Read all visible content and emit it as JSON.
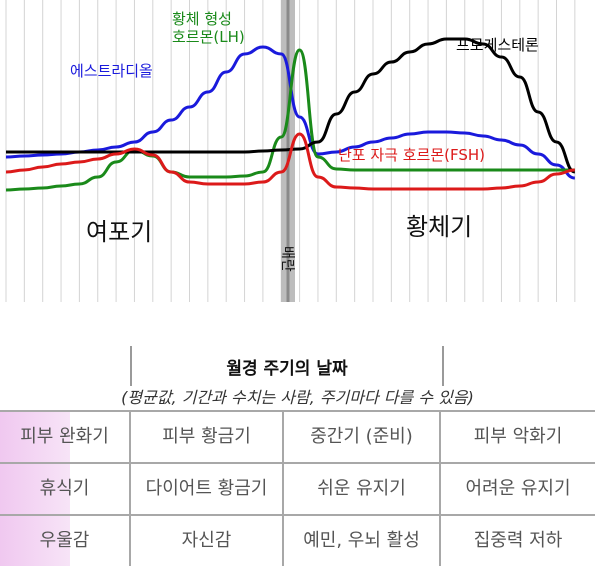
{
  "chart_data": {
    "type": "line",
    "x": [
      1,
      2,
      3,
      4,
      5,
      6,
      7,
      8,
      9,
      10,
      11,
      12,
      13,
      14,
      15,
      16,
      17,
      18,
      19,
      20,
      21,
      22,
      23,
      24,
      25,
      26,
      27,
      28,
      29,
      30,
      31,
      32
    ],
    "series": [
      {
        "name": "에스트라디올",
        "color": "#1a1adc",
        "values": [
          145,
          146,
          147,
          148,
          150,
          152,
          155,
          160,
          170,
          182,
          195,
          210,
          230,
          248,
          255,
          248,
          185,
          148,
          150,
          155,
          160,
          164,
          168,
          170,
          170,
          169,
          166,
          162,
          157,
          148,
          137,
          124
        ]
      },
      {
        "name": "황체 형성 호르몬(LH)",
        "color": "#1a8a1a",
        "values": [
          112,
          113,
          114,
          116,
          118,
          125,
          140,
          152,
          146,
          130,
          125,
          125,
          125,
          126,
          130,
          165,
          252,
          145,
          133,
          132,
          132,
          132,
          132,
          132,
          132,
          132,
          132,
          132,
          132,
          132,
          132,
          132
        ]
      },
      {
        "name": "프로게스테론",
        "color": "#000000",
        "values": [
          150,
          150,
          150,
          150,
          150,
          150,
          150,
          150,
          150,
          150,
          150,
          150,
          150,
          150,
          151,
          152,
          153,
          160,
          188,
          210,
          228,
          240,
          250,
          258,
          263,
          263,
          258,
          245,
          225,
          190,
          160,
          130
        ]
      },
      {
        "name": "난포 자극 호르몬(FSH)",
        "color": "#dc1a1a",
        "values": [
          130,
          132,
          135,
          138,
          140,
          143,
          148,
          153,
          147,
          130,
          120,
          118,
          118,
          118,
          120,
          130,
          168,
          125,
          115,
          114,
          113,
          113,
          113,
          113,
          113,
          113,
          113,
          114,
          116,
          120,
          128,
          132
        ]
      }
    ],
    "phase_labels": {
      "follicular": "여포기",
      "ovulation": "배란",
      "luteal": "황체기"
    },
    "ovulation_day": 17.5,
    "tick_colors": {
      "red": [
        1,
        2,
        3,
        4,
        5
      ],
      "blue": [
        15,
        16,
        17,
        18,
        19,
        20,
        21
      ],
      "black": [
        6,
        7,
        8,
        9,
        10,
        11,
        12,
        13,
        14,
        22,
        23,
        24,
        25,
        26,
        27,
        28,
        29,
        30,
        31,
        32
      ]
    },
    "xlim": [
      1,
      32
    ],
    "grid": true
  },
  "table": {
    "title": "월경 주기의 날짜",
    "note": "(평균값, 기간과 수치는 사람, 주기마다 다를 수 있음)",
    "rows": [
      [
        "피부 완화기",
        "피부 황금기",
        "중간기 (준비)",
        "피부 악화기"
      ],
      [
        "휴식기",
        "다이어트 황금기",
        "쉬운 유지기",
        "어려운 유지기"
      ],
      [
        "우울감",
        "자신감",
        "예민, 우뇌 활성",
        "집중력 저하"
      ]
    ]
  }
}
